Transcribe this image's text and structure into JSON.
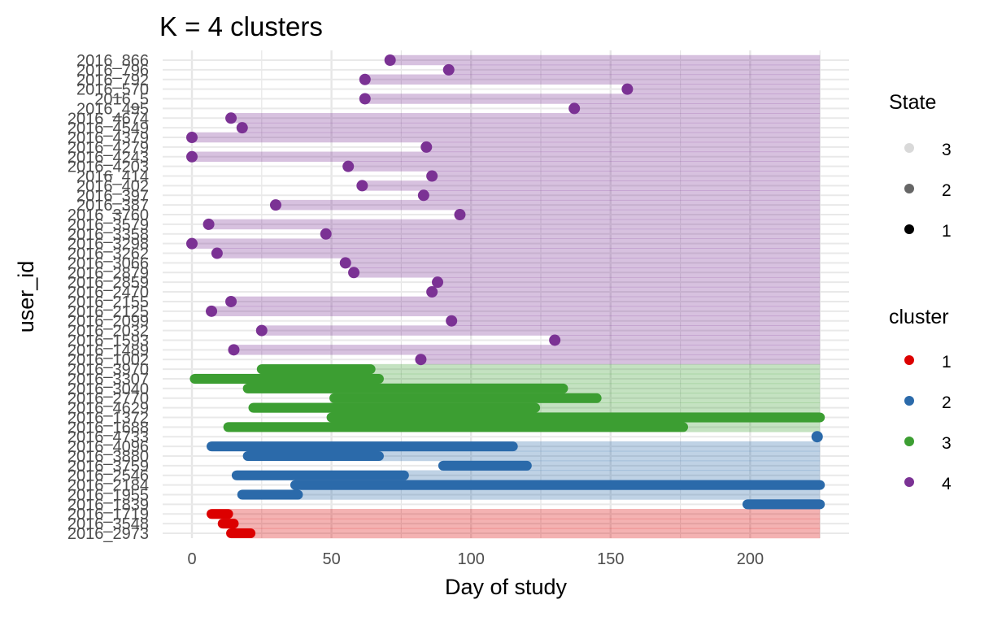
{
  "chart_data": {
    "type": "scatter",
    "title": "K = 4 clusters",
    "xlabel": "Day of study",
    "ylabel": "user_id",
    "xlim": [
      -10,
      233
    ],
    "x_ticks": [
      0,
      50,
      100,
      150,
      200
    ],
    "study_end_day": 225,
    "grid": true,
    "legend_position": "right",
    "colors": {
      "1": "#DC0000",
      "2": "#2B6AAA",
      "3": "#3C9E32",
      "4": "#7B3294"
    },
    "legend": {
      "state": {
        "title": "State",
        "items": [
          "3",
          "2",
          "1"
        ]
      },
      "cluster": {
        "title": "cluster",
        "items": [
          "1",
          "2",
          "3",
          "4"
        ]
      }
    },
    "users": [
      {
        "id": "2016_866",
        "cluster": 4,
        "segments": [],
        "points": [
          71
        ]
      },
      {
        "id": "2016_796",
        "cluster": 4,
        "segments": [],
        "points": [
          92
        ]
      },
      {
        "id": "2016_792",
        "cluster": 4,
        "segments": [],
        "points": [
          62
        ]
      },
      {
        "id": "2016_570",
        "cluster": 4,
        "segments": [],
        "points": [
          156
        ]
      },
      {
        "id": "2016_5",
        "cluster": 4,
        "segments": [],
        "points": [
          62
        ]
      },
      {
        "id": "2016_495",
        "cluster": 4,
        "segments": [],
        "points": [
          137
        ]
      },
      {
        "id": "2016_4674",
        "cluster": 4,
        "segments": [],
        "points": [
          14
        ]
      },
      {
        "id": "2016_4549",
        "cluster": 4,
        "segments": [],
        "points": [
          18
        ]
      },
      {
        "id": "2016_4379",
        "cluster": 4,
        "segments": [],
        "points": [
          0
        ]
      },
      {
        "id": "2016_4279",
        "cluster": 4,
        "segments": [],
        "points": [
          84
        ]
      },
      {
        "id": "2016_4243",
        "cluster": 4,
        "segments": [],
        "points": [
          0
        ]
      },
      {
        "id": "2016_4203",
        "cluster": 4,
        "segments": [],
        "points": [
          56
        ]
      },
      {
        "id": "2016_414",
        "cluster": 4,
        "segments": [],
        "points": [
          86
        ]
      },
      {
        "id": "2016_402",
        "cluster": 4,
        "segments": [],
        "points": [
          61
        ]
      },
      {
        "id": "2016_397",
        "cluster": 4,
        "segments": [],
        "points": [
          83
        ]
      },
      {
        "id": "2016_387",
        "cluster": 4,
        "segments": [],
        "points": [
          30
        ]
      },
      {
        "id": "2016_3760",
        "cluster": 4,
        "segments": [],
        "points": [
          96
        ]
      },
      {
        "id": "2016_3579",
        "cluster": 4,
        "segments": [],
        "points": [
          6
        ]
      },
      {
        "id": "2016_3358",
        "cluster": 4,
        "segments": [],
        "points": [
          48
        ]
      },
      {
        "id": "2016_3298",
        "cluster": 4,
        "segments": [],
        "points": [
          0
        ]
      },
      {
        "id": "2016_3262",
        "cluster": 4,
        "segments": [],
        "points": [
          9
        ]
      },
      {
        "id": "2016_3066",
        "cluster": 4,
        "segments": [],
        "points": [
          55
        ]
      },
      {
        "id": "2016_2879",
        "cluster": 4,
        "segments": [],
        "points": [
          58
        ]
      },
      {
        "id": "2016_2859",
        "cluster": 4,
        "segments": [],
        "points": [
          88
        ]
      },
      {
        "id": "2016_2470",
        "cluster": 4,
        "segments": [],
        "points": [
          86
        ]
      },
      {
        "id": "2016_2155",
        "cluster": 4,
        "segments": [],
        "points": [
          14
        ]
      },
      {
        "id": "2016_2125",
        "cluster": 4,
        "segments": [],
        "points": [
          7
        ]
      },
      {
        "id": "2016_2099",
        "cluster": 4,
        "segments": [],
        "points": [
          93
        ]
      },
      {
        "id": "2016_2032",
        "cluster": 4,
        "segments": [],
        "points": [
          25
        ]
      },
      {
        "id": "2016_1593",
        "cluster": 4,
        "segments": [],
        "points": [
          130
        ]
      },
      {
        "id": "2016_1489",
        "cluster": 4,
        "segments": [],
        "points": [
          15
        ]
      },
      {
        "id": "2016_1002",
        "cluster": 4,
        "segments": [],
        "points": [
          82
        ]
      },
      {
        "id": "2016_3970",
        "cluster": 3,
        "segments": [
          [
            25,
            64
          ]
        ],
        "points": []
      },
      {
        "id": "2016_3307",
        "cluster": 3,
        "segments": [
          [
            1,
            67
          ]
        ],
        "points": []
      },
      {
        "id": "2016_3040",
        "cluster": 3,
        "segments": [
          [
            20,
            133
          ]
        ],
        "points": []
      },
      {
        "id": "2016_2770",
        "cluster": 3,
        "segments": [
          [
            51,
            145
          ]
        ],
        "points": []
      },
      {
        "id": "2016_4629",
        "cluster": 3,
        "segments": [
          [
            22,
            123
          ]
        ],
        "points": []
      },
      {
        "id": "2016_1372",
        "cluster": 3,
        "segments": [
          [
            50,
            225
          ]
        ],
        "points": []
      },
      {
        "id": "2016_1688",
        "cluster": 3,
        "segments": [
          [
            13,
            176
          ]
        ],
        "points": []
      },
      {
        "id": "2016_4733",
        "cluster": 2,
        "segments": [],
        "points": [
          224
        ]
      },
      {
        "id": "2016_4096",
        "cluster": 2,
        "segments": [
          [
            7,
            115
          ]
        ],
        "points": []
      },
      {
        "id": "2016_3880",
        "cluster": 2,
        "segments": [
          [
            20,
            67
          ]
        ],
        "points": []
      },
      {
        "id": "2016_3759",
        "cluster": 2,
        "segments": [
          [
            90,
            120
          ]
        ],
        "points": []
      },
      {
        "id": "2016_2546",
        "cluster": 2,
        "segments": [
          [
            16,
            76
          ]
        ],
        "points": []
      },
      {
        "id": "2016_2184",
        "cluster": 2,
        "segments": [
          [
            37,
            225
          ]
        ],
        "points": []
      },
      {
        "id": "2016_1955",
        "cluster": 2,
        "segments": [
          [
            18,
            38
          ]
        ],
        "points": []
      },
      {
        "id": "2016_1839",
        "cluster": 2,
        "segments": [
          [
            199,
            225
          ]
        ],
        "points": []
      },
      {
        "id": "2016_1719",
        "cluster": 1,
        "segments": [
          [
            7,
            13
          ]
        ],
        "points": []
      },
      {
        "id": "2016_3548",
        "cluster": 1,
        "segments": [
          [
            11,
            15
          ]
        ],
        "points": []
      },
      {
        "id": "2016_2973",
        "cluster": 1,
        "segments": [
          [
            14,
            21
          ]
        ],
        "points": []
      }
    ]
  }
}
